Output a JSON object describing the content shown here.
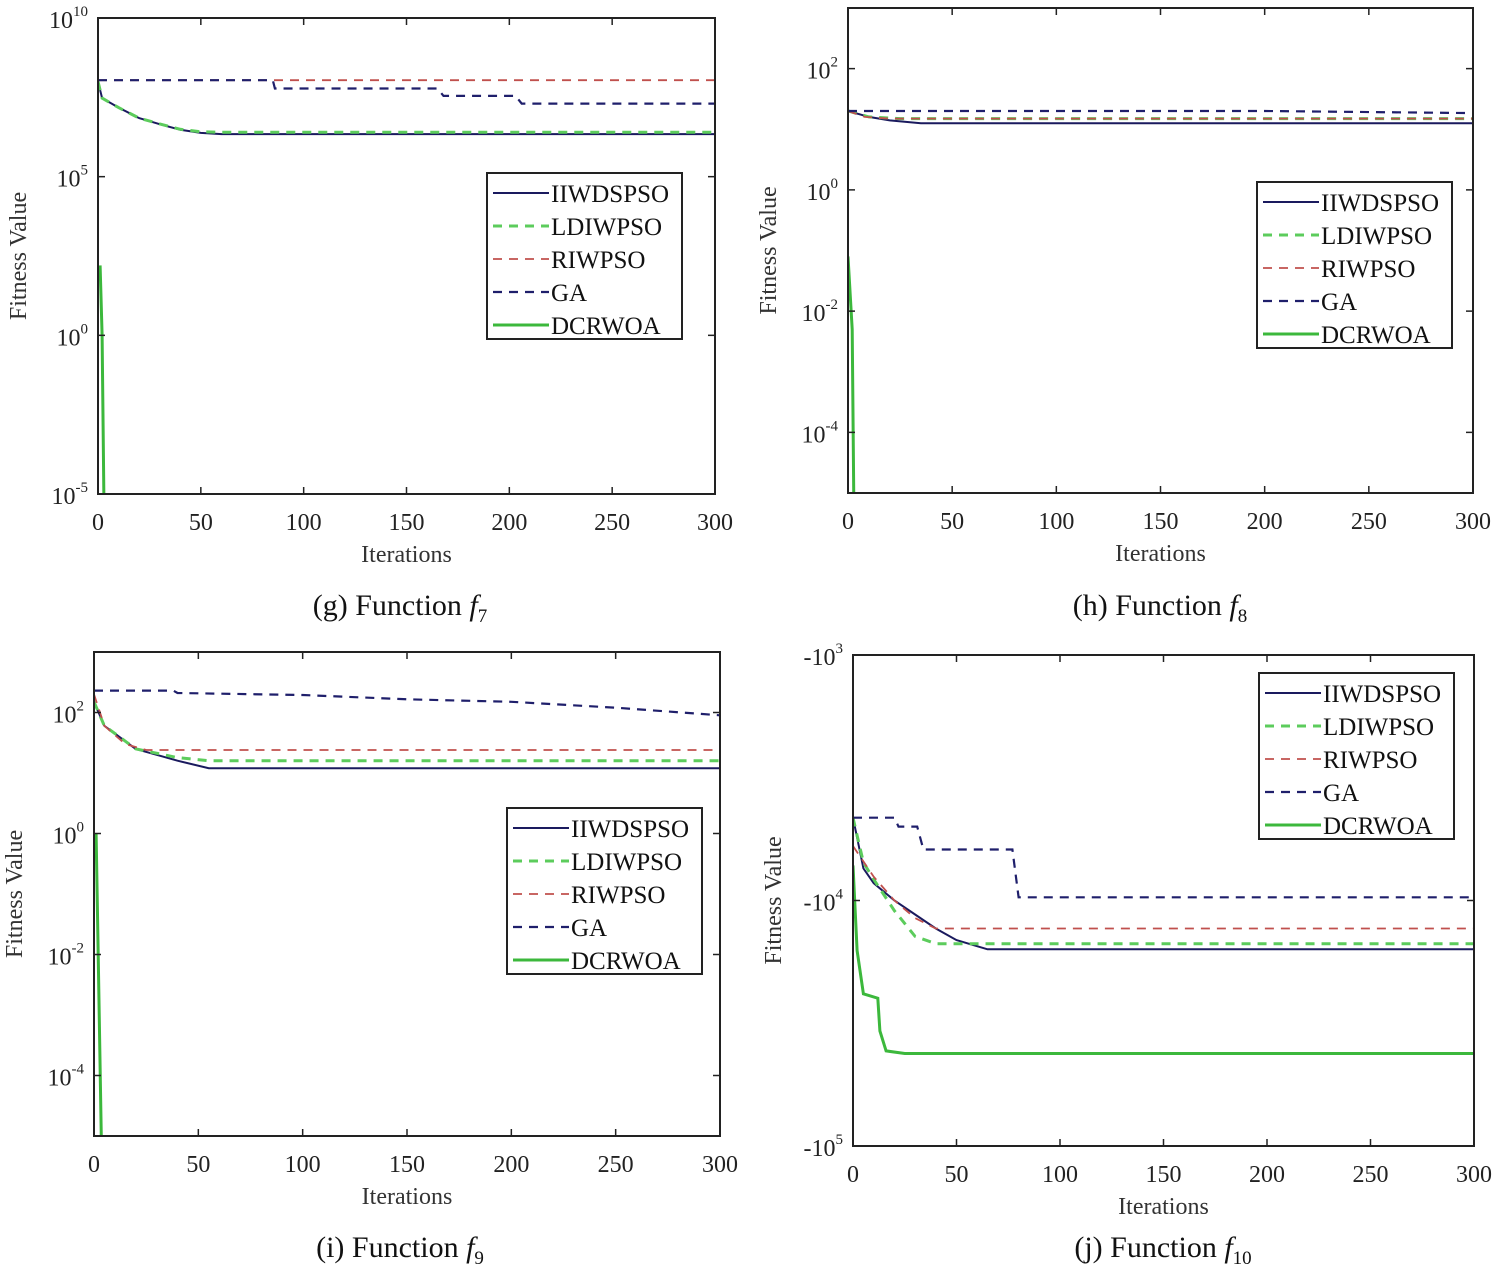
{
  "colors": {
    "IIWDSPSO": "#1a1a5e",
    "LDIWPSO": "#5ccc5c",
    "RIWPSO": "#c0504d",
    "GA": "#1f1f6b",
    "DCRWOA": "#3cb83c"
  },
  "chart_data": [
    {
      "type": "line",
      "caption": {
        "prefix": "(g) Function ",
        "var": "f",
        "sub": "7"
      },
      "xlabel": "Iterations",
      "ylabel": "Fitness Value",
      "xlim": [
        0,
        300
      ],
      "ylim": [
        1e-05,
        10000000000.0
      ],
      "yscale": "log",
      "xticks": [
        "0",
        "50",
        "100",
        "150",
        "200",
        "250",
        "300"
      ],
      "yticks": [
        {
          "base": "10",
          "exp": "10",
          "value": 10000000000.0
        },
        {
          "base": "10",
          "exp": "5",
          "value": 100000.0
        },
        {
          "base": "10",
          "exp": "0",
          "value": 1
        },
        {
          "base": "10",
          "exp": "-5",
          "value": 1e-05
        }
      ],
      "legend": "right",
      "series": [
        {
          "name": "IIWDSPSO",
          "style": "solid",
          "points": [
            [
              0,
              100000000.0
            ],
            [
              2,
              30000000.0
            ],
            [
              10,
              15000000.0
            ],
            [
              20,
              7000000.0
            ],
            [
              30,
              4500000.0
            ],
            [
              40,
              3000000.0
            ],
            [
              50,
              2400000.0
            ],
            [
              60,
              2200000.0
            ],
            [
              300,
              2200000.0
            ]
          ]
        },
        {
          "name": "LDIWPSO",
          "style": "dash",
          "points": [
            [
              0,
              100000000.0
            ],
            [
              2,
              30000000.0
            ],
            [
              10,
              15000000.0
            ],
            [
              20,
              7000000.0
            ],
            [
              30,
              4600000.0
            ],
            [
              40,
              3100000.0
            ],
            [
              50,
              2600000.0
            ],
            [
              60,
              2500000.0
            ],
            [
              300,
              2500000.0
            ]
          ]
        },
        {
          "name": "RIWPSO",
          "style": "dash",
          "points": [
            [
              0,
              110000000.0
            ],
            [
              300,
              110000000.0
            ]
          ]
        },
        {
          "name": "GA",
          "style": "dash",
          "points": [
            [
              0,
              110000000.0
            ],
            [
              85,
              110000000.0
            ],
            [
              86,
              60000000.0
            ],
            [
              165,
              60000000.0
            ],
            [
              168,
              35000000.0
            ],
            [
              203,
              35000000.0
            ],
            [
              206,
              20000000.0
            ],
            [
              300,
              20000000.0
            ]
          ]
        },
        {
          "name": "DCRWOA",
          "style": "solid",
          "points": [
            [
              1,
              160
            ],
            [
              2,
              1
            ],
            [
              3,
              1e-06
            ]
          ]
        }
      ]
    },
    {
      "type": "line",
      "caption": {
        "prefix": "(h) Function ",
        "var": "f",
        "sub": "8"
      },
      "xlabel": "Iterations",
      "ylabel": "Fitness Value",
      "xlim": [
        0,
        300
      ],
      "ylim": [
        1e-05,
        1000.0
      ],
      "yscale": "log",
      "xticks": [
        "0",
        "50",
        "100",
        "150",
        "200",
        "250",
        "300"
      ],
      "yticks": [
        {
          "base": "10",
          "exp": "2",
          "value": 100
        },
        {
          "base": "10",
          "exp": "0",
          "value": 1
        },
        {
          "base": "10",
          "exp": "-2",
          "value": 0.01
        },
        {
          "base": "10",
          "exp": "-4",
          "value": 0.0001
        }
      ],
      "legend": "right",
      "series": [
        {
          "name": "IIWDSPSO",
          "style": "solid",
          "points": [
            [
              0,
              20
            ],
            [
              10,
              16
            ],
            [
              20,
              14
            ],
            [
              35,
              12.6
            ],
            [
              300,
              12.6
            ]
          ]
        },
        {
          "name": "LDIWPSO",
          "style": "dash",
          "points": [
            [
              0,
              20
            ],
            [
              10,
              16
            ],
            [
              25,
              15
            ],
            [
              300,
              15
            ]
          ]
        },
        {
          "name": "RIWPSO",
          "style": "dash",
          "points": [
            [
              0,
              20
            ],
            [
              8,
              16
            ],
            [
              20,
              15
            ],
            [
              300,
              15
            ]
          ]
        },
        {
          "name": "GA",
          "style": "dash",
          "points": [
            [
              0,
              20
            ],
            [
              200,
              20
            ],
            [
              300,
              18.5
            ]
          ]
        },
        {
          "name": "DCRWOA",
          "style": "solid",
          "points": [
            [
              0,
              0.08
            ],
            [
              2,
              0.005
            ],
            [
              3,
              1e-06
            ]
          ]
        }
      ]
    },
    {
      "type": "line",
      "caption": {
        "prefix": "(i) Function ",
        "var": "f",
        "sub": "9"
      },
      "xlabel": "Iterations",
      "ylabel": "Fitness Value",
      "xlim": [
        0,
        300
      ],
      "ylim": [
        1e-05,
        1000.0
      ],
      "yscale": "log",
      "xticks": [
        "0",
        "50",
        "100",
        "150",
        "200",
        "250",
        "300"
      ],
      "yticks": [
        {
          "base": "10",
          "exp": "2",
          "value": 100
        },
        {
          "base": "10",
          "exp": "0",
          "value": 1
        },
        {
          "base": "10",
          "exp": "-2",
          "value": 0.01
        },
        {
          "base": "10",
          "exp": "-4",
          "value": 0.0001
        }
      ],
      "legend": "right",
      "series": [
        {
          "name": "IIWDSPSO",
          "style": "solid",
          "points": [
            [
              0,
              150
            ],
            [
              5,
              60
            ],
            [
              10,
              45
            ],
            [
              20,
              25
            ],
            [
              30,
              20
            ],
            [
              40,
              16
            ],
            [
              55,
              12
            ],
            [
              300,
              12
            ]
          ]
        },
        {
          "name": "LDIWPSO",
          "style": "dash",
          "points": [
            [
              0,
              150
            ],
            [
              5,
              60
            ],
            [
              10,
              45
            ],
            [
              20,
              25
            ],
            [
              40,
              18
            ],
            [
              55,
              16
            ],
            [
              300,
              16
            ]
          ]
        },
        {
          "name": "RIWPSO",
          "style": "dash",
          "points": [
            [
              0,
              200
            ],
            [
              5,
              60
            ],
            [
              15,
              30
            ],
            [
              25,
              24
            ],
            [
              300,
              24
            ]
          ]
        },
        {
          "name": "GA",
          "style": "dash",
          "points": [
            [
              0,
              230
            ],
            [
              38,
              230
            ],
            [
              40,
              210
            ],
            [
              100,
              195
            ],
            [
              150,
              165
            ],
            [
              200,
              150
            ],
            [
              250,
              120
            ],
            [
              300,
              90
            ]
          ]
        },
        {
          "name": "DCRWOA",
          "style": "solid",
          "points": [
            [
              1,
              1
            ],
            [
              2,
              0.01
            ],
            [
              4,
              1e-06
            ]
          ]
        }
      ]
    },
    {
      "type": "line",
      "caption": {
        "prefix": "(j) Function ",
        "var": "f",
        "sub": "10"
      },
      "xlabel": "Iterations",
      "ylabel": "Fitness Value",
      "xlim": [
        0,
        300
      ],
      "ylim": [
        -1000.0,
        -100000.0
      ],
      "yscale": "log (negative)",
      "xticks": [
        "0",
        "50",
        "100",
        "150",
        "200",
        "250",
        "300"
      ],
      "yticks": [
        {
          "base": "-10",
          "exp": "3",
          "value": -1000
        },
        {
          "base": "-10",
          "exp": "4",
          "value": -10000
        },
        {
          "base": "-10",
          "exp": "5",
          "value": -100000
        }
      ],
      "legend": "top-right",
      "series": [
        {
          "name": "IIWDSPSO",
          "style": "solid",
          "points": [
            [
              0,
              -4600
            ],
            [
              5,
              -7400
            ],
            [
              10,
              -8500
            ],
            [
              20,
              -10000
            ],
            [
              30,
              -11400
            ],
            [
              40,
              -13000
            ],
            [
              50,
              -14500
            ],
            [
              65,
              -15800
            ],
            [
              300,
              -15800
            ]
          ]
        },
        {
          "name": "LDIWPSO",
          "style": "dash",
          "points": [
            [
              0,
              -4600
            ],
            [
              5,
              -7000
            ],
            [
              10,
              -8200
            ],
            [
              20,
              -11000
            ],
            [
              30,
              -14000
            ],
            [
              40,
              -15000
            ],
            [
              300,
              -15000
            ]
          ]
        },
        {
          "name": "RIWPSO",
          "style": "dash",
          "points": [
            [
              0,
              -6000
            ],
            [
              10,
              -8000
            ],
            [
              20,
              -10000
            ],
            [
              30,
              -11800
            ],
            [
              40,
              -13000
            ],
            [
              300,
              -13000
            ]
          ]
        },
        {
          "name": "GA",
          "style": "dash",
          "points": [
            [
              0,
              -4600
            ],
            [
              20,
              -4600
            ],
            [
              22,
              -5000
            ],
            [
              31,
              -5000
            ],
            [
              34,
              -6200
            ],
            [
              77,
              -6200
            ],
            [
              80,
              -9700
            ],
            [
              300,
              -9700
            ]
          ]
        },
        {
          "name": "DCRWOA",
          "style": "solid",
          "points": [
            [
              0,
              -7200
            ],
            [
              2,
              -16000
            ],
            [
              5,
              -24000
            ],
            [
              12,
              -25000
            ],
            [
              13,
              -34000
            ],
            [
              16,
              -41000
            ],
            [
              25,
              -42000
            ],
            [
              300,
              -42000
            ]
          ]
        }
      ]
    }
  ]
}
